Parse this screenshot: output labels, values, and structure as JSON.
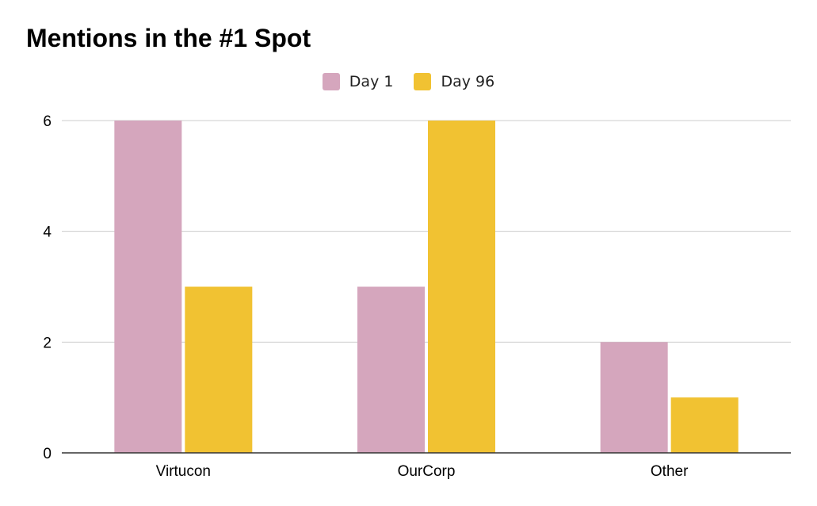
{
  "chart_data": {
    "type": "bar",
    "title": "Mentions in the #1 Spot",
    "xlabel": "",
    "ylabel": "",
    "categories": [
      "Virtucon",
      "OurCorp",
      "Other"
    ],
    "series": [
      {
        "name": "Day 1",
        "values": [
          6,
          3,
          2
        ],
        "color": "#d5a6bd"
      },
      {
        "name": "Day 96",
        "values": [
          3,
          6,
          1
        ],
        "color": "#f1c232"
      }
    ],
    "ylim": [
      0,
      6
    ],
    "yticks": [
      "0",
      "2",
      "4",
      "6"
    ],
    "grid": true,
    "legend": "top-center"
  }
}
